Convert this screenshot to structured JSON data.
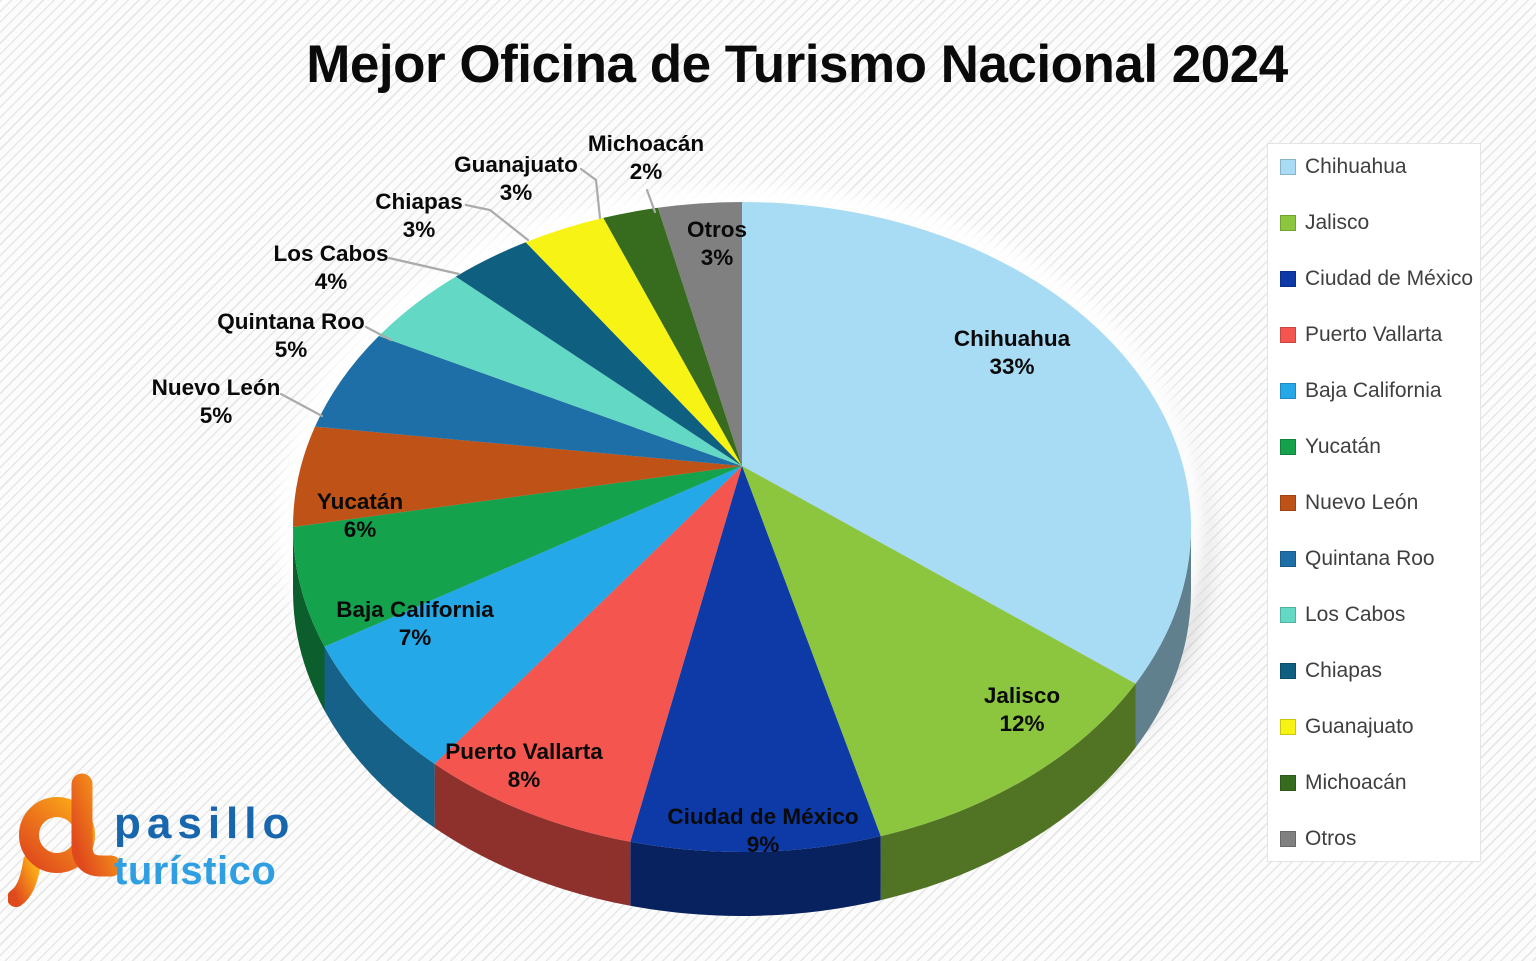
{
  "title": "Mejor Oficina de Turismo Nacional 2024",
  "chart_data": {
    "type": "pie",
    "style": "3d",
    "title": "Mejor Oficina de Turismo Nacional 2024",
    "units": "percent",
    "total": 100,
    "start_angle": "12-oclock",
    "direction": "clockwise",
    "legend_position": "right",
    "label_format": "{name} {value}%",
    "series": [
      {
        "name": "Chihuahua",
        "value": 33,
        "color": "#A8DCF4"
      },
      {
        "name": "Jalisco",
        "value": 12,
        "color": "#8CC63E"
      },
      {
        "name": "Ciudad de México",
        "value": 9,
        "color": "#0D3AA6"
      },
      {
        "name": "Puerto Vallarta",
        "value": 8,
        "color": "#F4554E"
      },
      {
        "name": "Baja California",
        "value": 7,
        "color": "#25A8E8"
      },
      {
        "name": "Yucatán",
        "value": 6,
        "color": "#14A24D"
      },
      {
        "name": "Nuevo León",
        "value": 5,
        "color": "#BF5317"
      },
      {
        "name": "Quintana Roo",
        "value": 5,
        "color": "#1E6FA7"
      },
      {
        "name": "Los Cabos",
        "value": 4,
        "color": "#63D8C4"
      },
      {
        "name": "Chiapas",
        "value": 3,
        "color": "#0F5F80"
      },
      {
        "name": "Guanajuato",
        "value": 3,
        "color": "#F7F315"
      },
      {
        "name": "Michoacán",
        "value": 2,
        "color": "#376C1E"
      },
      {
        "name": "Otros",
        "value": 3,
        "color": "#808080"
      }
    ]
  },
  "logo": {
    "monogram": "pt",
    "line1": "pasillo",
    "line2": "turístico",
    "colors": {
      "orange_dark": "#E0491D",
      "orange_light": "#FBA918",
      "blue_dark": "#1867AE",
      "blue_light": "#2F9FE2"
    }
  }
}
